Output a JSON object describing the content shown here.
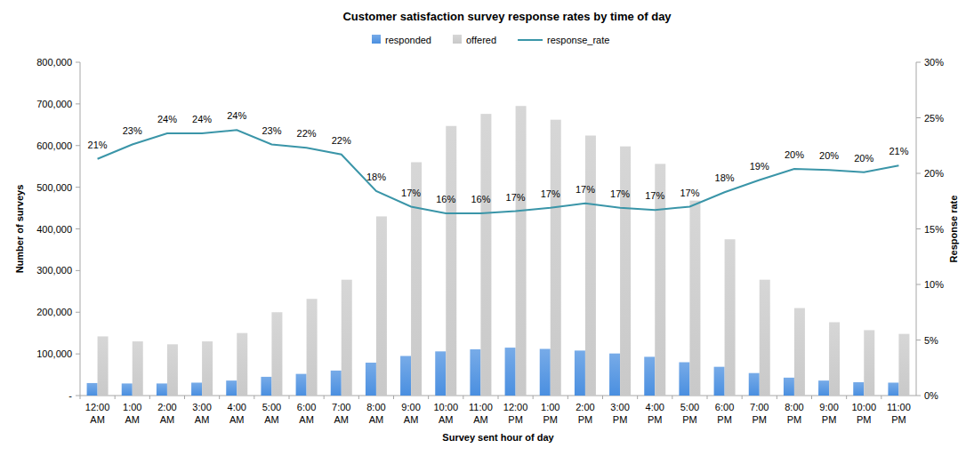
{
  "chart_data": {
    "type": "bar",
    "title": "Customer satisfaction survey response rates by time of day",
    "x_label": "Survey sent hour of day",
    "y_label": "Number of surveys",
    "y2_label": "Response rate",
    "legend": "top",
    "grid": false,
    "categories": [
      "12:00 AM",
      "1:00 AM",
      "2:00 AM",
      "3:00 AM",
      "4:00 AM",
      "5:00 AM",
      "6:00 AM",
      "7:00 AM",
      "8:00 AM",
      "9:00 AM",
      "10:00 AM",
      "11:00 AM",
      "12:00 PM",
      "1:00 PM",
      "2:00 PM",
      "3:00 PM",
      "4:00 PM",
      "5:00 PM",
      "6:00 PM",
      "7:00 PM",
      "8:00 PM",
      "9:00 PM",
      "10:00 PM",
      "11:00 PM"
    ],
    "ylim": [
      0,
      800000
    ],
    "yticks": [
      {
        "value": 0,
        "label": "-"
      },
      {
        "value": 100000,
        "label": "100,000"
      },
      {
        "value": 200000,
        "label": "200,000"
      },
      {
        "value": 300000,
        "label": "300,000"
      },
      {
        "value": 400000,
        "label": "400,000"
      },
      {
        "value": 500000,
        "label": "500,000"
      },
      {
        "value": 600000,
        "label": "600,000"
      },
      {
        "value": 700000,
        "label": "700,000"
      },
      {
        "value": 800000,
        "label": "800,000"
      }
    ],
    "y2lim": [
      0,
      30
    ],
    "y2ticks": [
      {
        "value": 0,
        "label": "0%"
      },
      {
        "value": 5,
        "label": "5%"
      },
      {
        "value": 10,
        "label": "10%"
      },
      {
        "value": 15,
        "label": "15%"
      },
      {
        "value": 20,
        "label": "20%"
      },
      {
        "value": 25,
        "label": "25%"
      },
      {
        "value": 30,
        "label": "30%"
      }
    ],
    "series": [
      {
        "name": "responded",
        "type": "bar",
        "color": "#4a8fe0",
        "values": [
          30000,
          29000,
          29000,
          31000,
          36000,
          45000,
          52000,
          60000,
          79000,
          95000,
          106000,
          111000,
          115000,
          112000,
          108000,
          101000,
          93000,
          80000,
          69000,
          54000,
          43000,
          36000,
          32000,
          31000
        ]
      },
      {
        "name": "offered",
        "type": "bar",
        "color": "#c9c9c9",
        "values": [
          142000,
          130000,
          123000,
          130000,
          150000,
          200000,
          232000,
          278000,
          430000,
          560000,
          647000,
          676000,
          695000,
          662000,
          624000,
          598000,
          556000,
          468000,
          375000,
          278000,
          210000,
          176000,
          157000,
          148000
        ]
      },
      {
        "name": "response_rate",
        "type": "line",
        "axis": "y2",
        "color": "#3a95a8",
        "data_labels": true,
        "values": [
          21.3,
          22.6,
          23.6,
          23.6,
          23.9,
          22.6,
          22.3,
          21.7,
          18.4,
          17.0,
          16.4,
          16.4,
          16.6,
          16.9,
          17.3,
          16.9,
          16.7,
          17.0,
          18.3,
          19.4,
          20.4,
          20.3,
          20.1,
          20.7
        ],
        "value_labels": [
          "21%",
          "23%",
          "24%",
          "24%",
          "24%",
          "23%",
          "22%",
          "22%",
          "18%",
          "17%",
          "16%",
          "16%",
          "17%",
          "17%",
          "17%",
          "17%",
          "17%",
          "17%",
          "18%",
          "19%",
          "20%",
          "20%",
          "20%",
          "21%"
        ]
      }
    ]
  }
}
